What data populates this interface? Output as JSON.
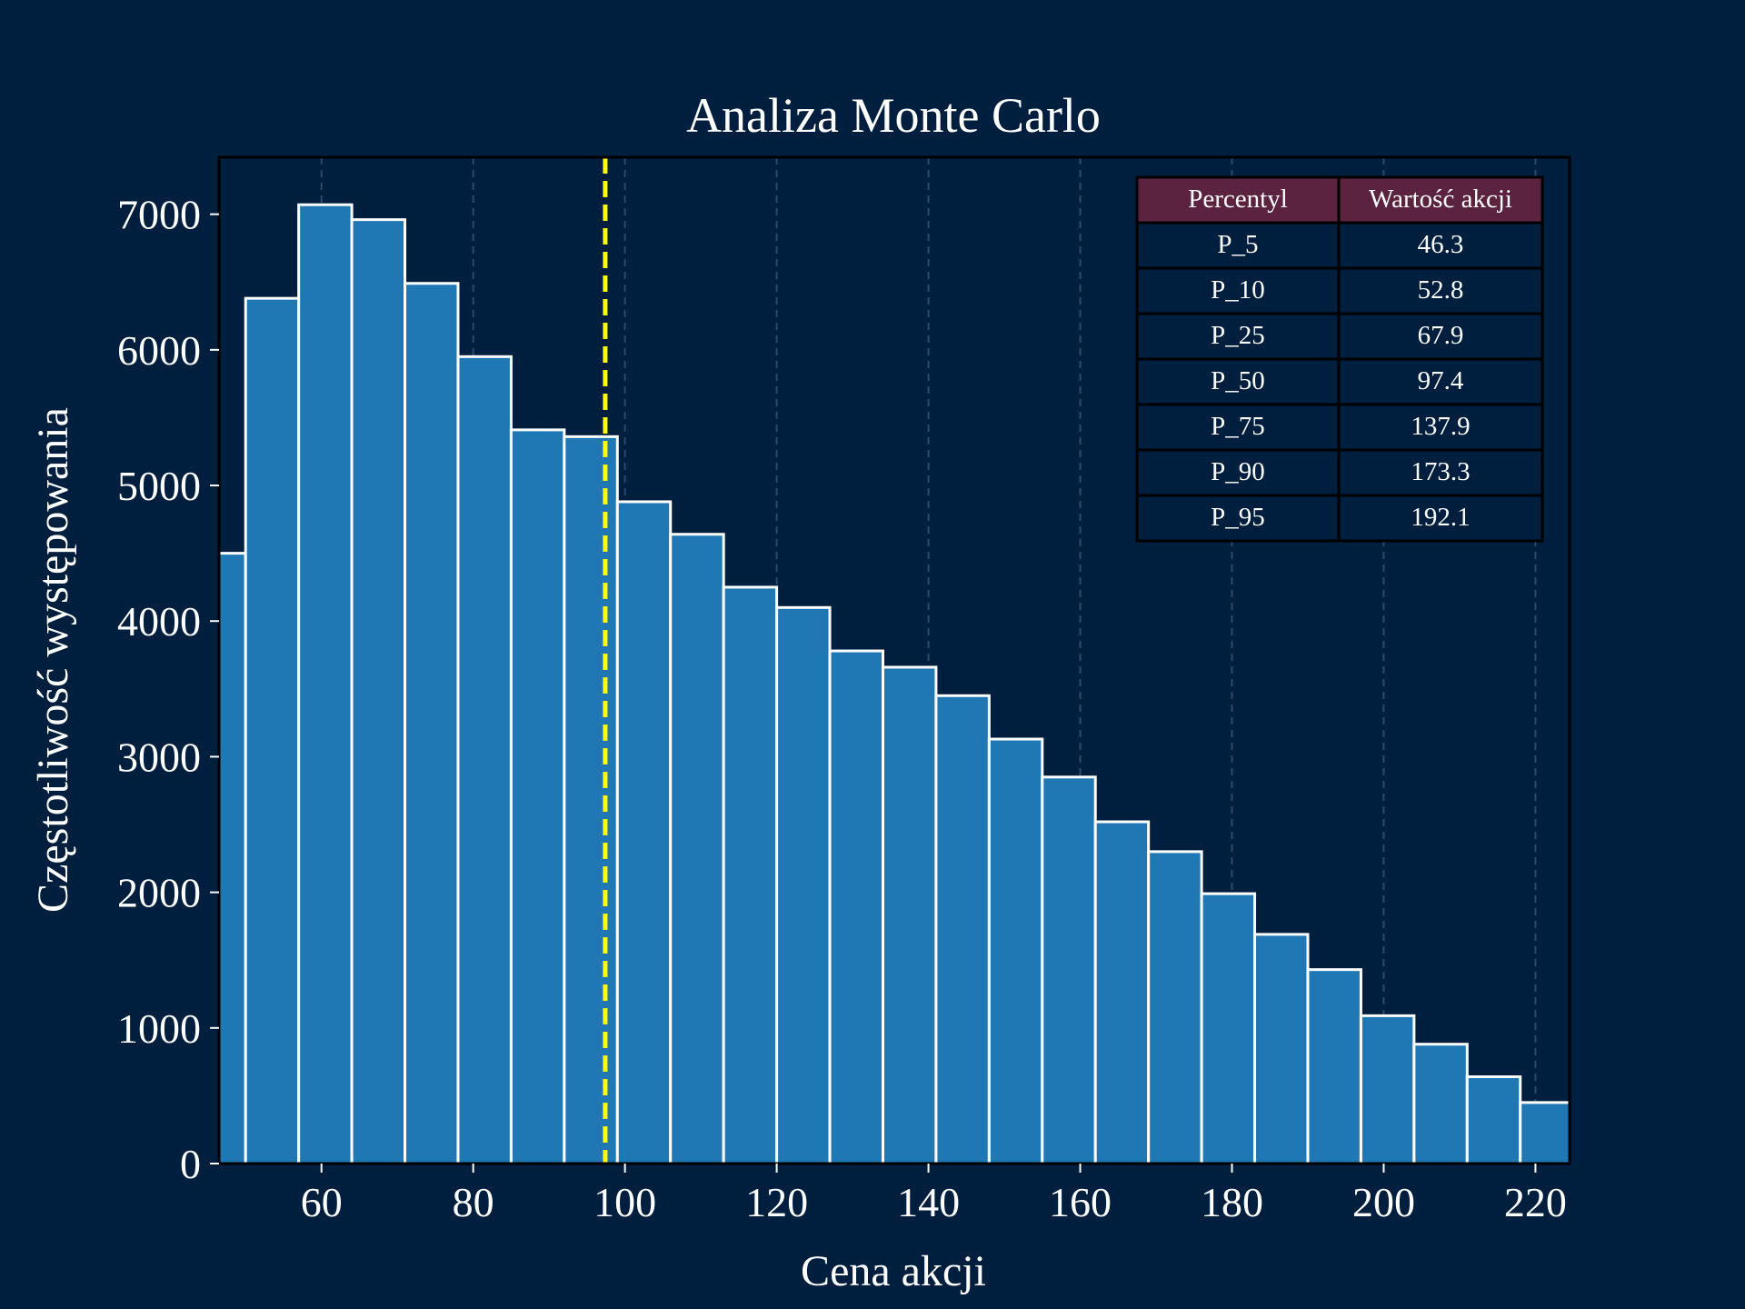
{
  "colors": {
    "background": "#001f3f",
    "bar_fill": "#1f77b4",
    "bar_edge": "#ffffff",
    "text": "#ffffff",
    "axes_frame": "#000000",
    "grid": "#2a4a6a",
    "median_line": "#ffff00",
    "table_header_bg": "#5c2340",
    "table_cell_bg": "#001f3f",
    "table_border": "#000000"
  },
  "chart_data": {
    "type": "bar",
    "title": "Analiza Monte Carlo",
    "xlabel": "Cena akcji",
    "ylabel": "Częstotliwość występowania",
    "xlim": [
      46.5,
      224.5
    ],
    "ylim": [
      0,
      7420
    ],
    "xticks": [
      60,
      80,
      100,
      120,
      140,
      160,
      180,
      200,
      220
    ],
    "yticks": [
      0,
      1000,
      2000,
      3000,
      4000,
      5000,
      6000,
      7000
    ],
    "grid": "vertical dashed",
    "bin_edges": [
      43,
      50,
      57,
      64,
      71,
      78,
      85,
      92,
      99,
      106,
      113,
      120,
      127,
      134,
      141,
      148,
      155,
      162,
      169,
      176,
      183,
      190,
      197,
      204,
      211,
      218,
      225
    ],
    "values": [
      4500,
      6380,
      7070,
      6960,
      6490,
      5950,
      5410,
      5360,
      4880,
      4640,
      4250,
      4100,
      3780,
      3660,
      3450,
      3130,
      2850,
      2520,
      2300,
      1990,
      1690,
      1430,
      1090,
      880,
      640,
      450
    ],
    "median_line": 97.4,
    "table": {
      "headers": [
        "Percentyl",
        "Wartość akcji"
      ],
      "rows": [
        [
          "P_5",
          "46.3"
        ],
        [
          "P_10",
          "52.8"
        ],
        [
          "P_25",
          "67.9"
        ],
        [
          "P_50",
          "97.4"
        ],
        [
          "P_75",
          "137.9"
        ],
        [
          "P_90",
          "173.3"
        ],
        [
          "P_95",
          "192.1"
        ]
      ]
    }
  }
}
